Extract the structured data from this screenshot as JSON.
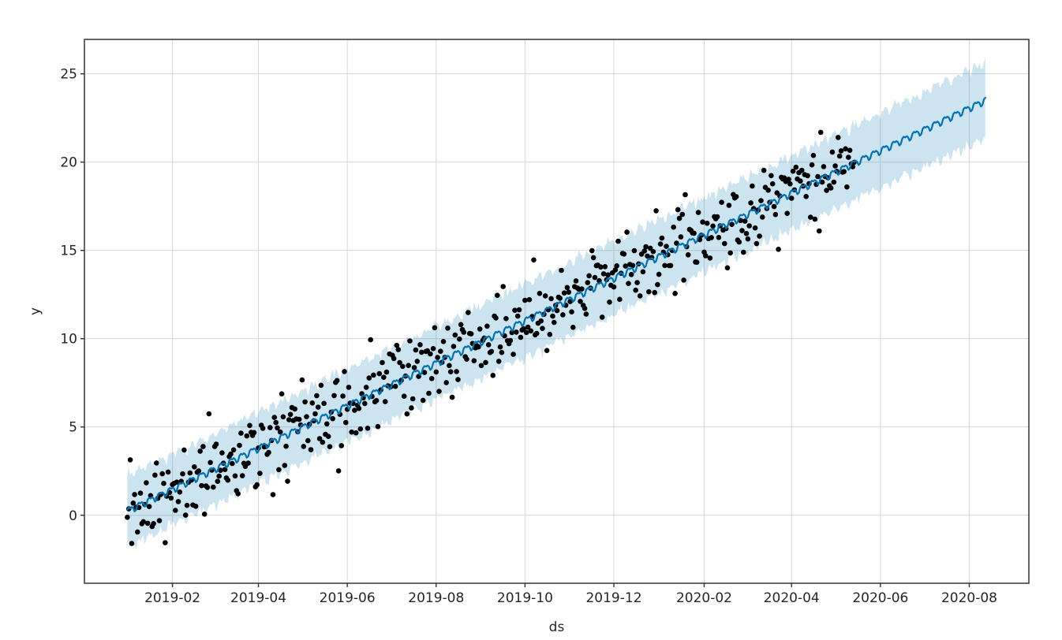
{
  "top_bar": {
    "background": "#f8f8f8"
  },
  "chart_data": {
    "type": "scatter+line+area",
    "title": "",
    "xlabel": "ds",
    "ylabel": "y",
    "grid": true,
    "legend": "none",
    "x_start_date": "2019-01-01",
    "total_days": 590,
    "history_days": 500,
    "forecast_days": 90,
    "x_ticks": [
      {
        "label": "2019-02",
        "day": 31
      },
      {
        "label": "2019-04",
        "day": 90
      },
      {
        "label": "2019-06",
        "day": 151
      },
      {
        "label": "2019-08",
        "day": 212
      },
      {
        "label": "2019-10",
        "day": 273
      },
      {
        "label": "2019-12",
        "day": 334
      },
      {
        "label": "2020-02",
        "day": 396
      },
      {
        "label": "2020-04",
        "day": 456
      },
      {
        "label": "2020-06",
        "day": 517
      },
      {
        "label": "2020-08",
        "day": 578
      }
    ],
    "y_ticks": [
      0,
      5,
      10,
      15,
      20,
      25
    ],
    "xlim_days": [
      -29.45,
      618.9
    ],
    "ylim": [
      -3.85,
      26.95
    ],
    "trend": {
      "start_value": 0.25,
      "end_value": 23.5
    },
    "weekly_seasonality_amplitude": 0.17,
    "uncertainty": {
      "half_width_start": 2.0,
      "half_width_end": 2.15,
      "edge_noise": 0.12
    },
    "line": {
      "name": "yhat",
      "color": "#0072B2",
      "width": 2.2
    },
    "band": {
      "name": "uncertainty-interval",
      "color": "#0072B2",
      "opacity": 0.2
    },
    "scatter": {
      "name": "observed-points",
      "count": 500,
      "noise_sd": 1.15,
      "seed": 20190101,
      "color": "#000000",
      "marker_radius": 3.3
    },
    "colors": {
      "grid": "#d9d9d9",
      "spine": "#333333",
      "tick_text": "#262626",
      "plot_background": "#ffffff"
    }
  }
}
